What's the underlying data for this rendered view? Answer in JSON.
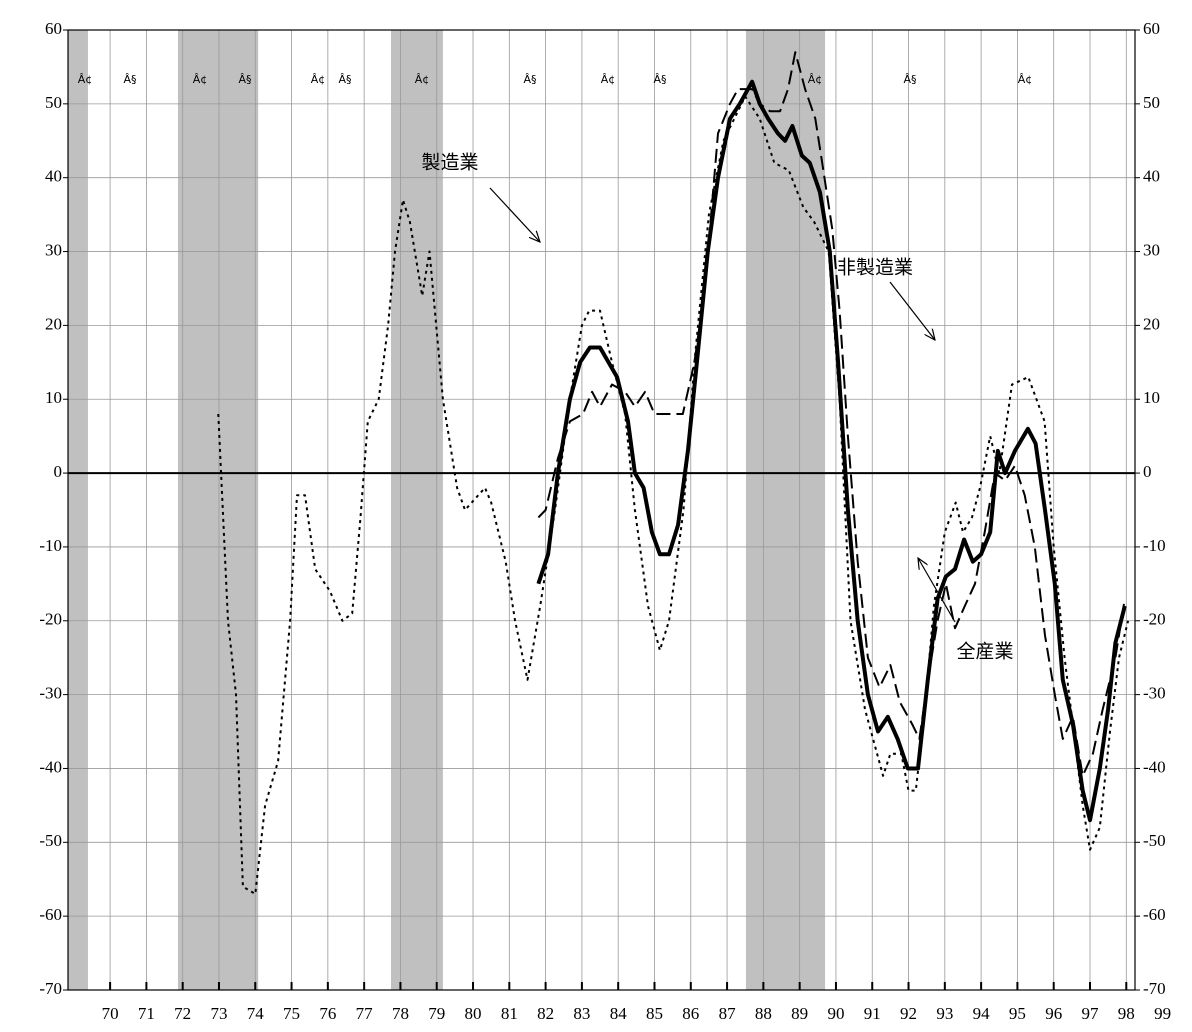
{
  "chart_data": {
    "type": "line",
    "xlim": [
      68.84,
      98.24
    ],
    "ylim": [
      -70,
      60
    ],
    "xticks": [
      70,
      71,
      72,
      73,
      74,
      75,
      76,
      77,
      78,
      79,
      80,
      81,
      82,
      83,
      84,
      85,
      86,
      87,
      88,
      89,
      90,
      91,
      92,
      93,
      94,
      95,
      96,
      97,
      98,
      99
    ],
    "yticks": [
      -70,
      -60,
      -50,
      -40,
      -30,
      -20,
      -10,
      0,
      10,
      20,
      30,
      40,
      50,
      60
    ],
    "grid": true,
    "shaded_periods": [
      [
        68.84,
        69.39
      ],
      [
        71.87,
        74.08
      ],
      [
        77.74,
        79.17
      ],
      [
        87.52,
        89.7
      ]
    ],
    "shade_color": "#c0c0c0",
    "turning_point_labels": [
      "Â¢",
      "Â§",
      "Â¢",
      "Â§",
      "Â¢",
      "Â§",
      "Â¢",
      "Â§",
      "Â¢",
      "Â§",
      "Â¢",
      "Â§",
      "Â¢"
    ],
    "annotations": [
      "製造業",
      "非製造業",
      "全産業"
    ],
    "series": [
      {
        "name": "製造業",
        "color": "#000000",
        "style": "dotted",
        "x": [
          72.98,
          73.25,
          73.47,
          73.66,
          74.0,
          74.27,
          74.63,
          74.96,
          75.15,
          75.37,
          75.65,
          76.06,
          76.4,
          76.67,
          76.9,
          77.1,
          77.4,
          77.66,
          77.85,
          78.07,
          78.26,
          78.6,
          78.8,
          79.17,
          79.56,
          79.78,
          80.33,
          80.5,
          80.9,
          81.16,
          81.5,
          81.85,
          82.26,
          82.67,
          83.0,
          83.2,
          83.5,
          83.83,
          84.19,
          84.46,
          84.82,
          85.15,
          85.4,
          85.8,
          86.1,
          86.5,
          86.9,
          87.5,
          87.9,
          88.3,
          88.7,
          89.1,
          89.4,
          89.8,
          90.1,
          90.4,
          90.8,
          91.3,
          91.5,
          91.8,
          92.0,
          92.2,
          92.45,
          92.7,
          93.0,
          93.3,
          93.5,
          93.75,
          93.97,
          94.25,
          94.5,
          94.85,
          95.3,
          95.75,
          96.0,
          96.3,
          96.6,
          96.8,
          97.0,
          97.27,
          97.55,
          97.8,
          98.05
        ],
        "values": [
          8,
          -20,
          -30,
          -56,
          -57,
          -45,
          -39,
          -20,
          -3,
          -3,
          -13,
          -16,
          -20,
          -19,
          -6,
          7,
          10,
          20,
          30,
          37,
          34,
          24,
          30,
          10,
          -2,
          -5,
          -2,
          -4,
          -12,
          -20,
          -28,
          -18,
          -5,
          10,
          20,
          22,
          22,
          15,
          8,
          -5,
          -18,
          -24,
          -20,
          -5,
          15,
          35,
          45,
          51,
          48,
          42,
          41,
          36,
          34,
          30,
          10,
          -20,
          -32,
          -41,
          -38,
          -38,
          -43,
          -43,
          -32,
          -18,
          -8,
          -4,
          -8,
          -6,
          -2,
          5,
          0,
          12,
          13,
          7,
          -10,
          -25,
          -37,
          -45,
          -51,
          -48,
          -35,
          -25,
          -20
        ]
      },
      {
        "name": "非製造業",
        "color": "#000000",
        "style": "dashed",
        "x": [
          81.8,
          82.0,
          82.34,
          82.67,
          83.03,
          83.28,
          83.5,
          83.83,
          84.19,
          84.46,
          84.74,
          85.0,
          85.4,
          85.78,
          86.1,
          86.39,
          86.75,
          87.08,
          87.3,
          87.69,
          87.9,
          88.18,
          88.46,
          88.68,
          88.88,
          89.15,
          89.43,
          89.62,
          89.9,
          90.1,
          90.33,
          90.6,
          90.88,
          91.2,
          91.5,
          91.76,
          92.1,
          92.3,
          92.53,
          92.8,
          93.03,
          93.28,
          93.55,
          93.83,
          94.1,
          94.38,
          94.66,
          94.93,
          95.2,
          95.48,
          95.76,
          96.03,
          96.25,
          96.53,
          96.8,
          97.08,
          97.35,
          97.7,
          97.96
        ],
        "values": [
          -6,
          -5,
          2,
          7,
          8,
          11,
          9,
          12,
          11,
          9,
          11,
          8,
          8,
          8,
          15,
          25,
          46,
          50,
          52,
          52,
          50,
          49,
          49,
          52,
          57,
          52,
          48,
          42,
          33,
          22,
          5,
          -12,
          -25,
          -29,
          -26,
          -31,
          -34,
          -36,
          -28,
          -20,
          -15,
          -21,
          -18,
          -15,
          -8,
          0,
          -1,
          1,
          -3,
          -10,
          -22,
          -30,
          -36,
          -33,
          -41,
          -38,
          -32,
          -25,
          -17
        ]
      },
      {
        "name": "全産業",
        "color": "#000000",
        "style": "solid",
        "x": [
          81.8,
          82.07,
          82.34,
          82.67,
          82.95,
          83.22,
          83.5,
          83.97,
          84.27,
          84.46,
          84.7,
          84.93,
          85.15,
          85.4,
          85.65,
          85.92,
          86.17,
          86.47,
          86.75,
          87.08,
          87.35,
          87.69,
          87.9,
          88.13,
          88.4,
          88.6,
          88.8,
          89.06,
          89.28,
          89.56,
          89.83,
          90.06,
          90.33,
          90.6,
          90.88,
          91.16,
          91.43,
          91.7,
          91.98,
          92.26,
          92.53,
          92.8,
          93.03,
          93.28,
          93.53,
          93.77,
          94.0,
          94.25,
          94.46,
          94.66,
          94.93,
          95.29,
          95.5,
          95.76,
          96.03,
          96.25,
          96.53,
          96.8,
          97.0,
          97.27,
          97.5,
          97.7,
          97.96
        ],
        "values": [
          -15,
          -11,
          0,
          10,
          15,
          17,
          17,
          13,
          7,
          0,
          -2,
          -8,
          -11,
          -11,
          -7,
          3,
          15,
          30,
          40,
          48,
          50,
          53,
          50,
          48,
          46,
          45,
          47,
          43,
          42,
          38,
          30,
          15,
          -5,
          -20,
          -30,
          -35,
          -33,
          -36,
          -40,
          -40,
          -28,
          -17,
          -14,
          -13,
          -9,
          -12,
          -11,
          -8,
          3,
          0,
          3,
          6,
          4,
          -5,
          -15,
          -28,
          -34,
          -43,
          -47,
          -40,
          -32,
          -23,
          -18
        ]
      }
    ]
  }
}
